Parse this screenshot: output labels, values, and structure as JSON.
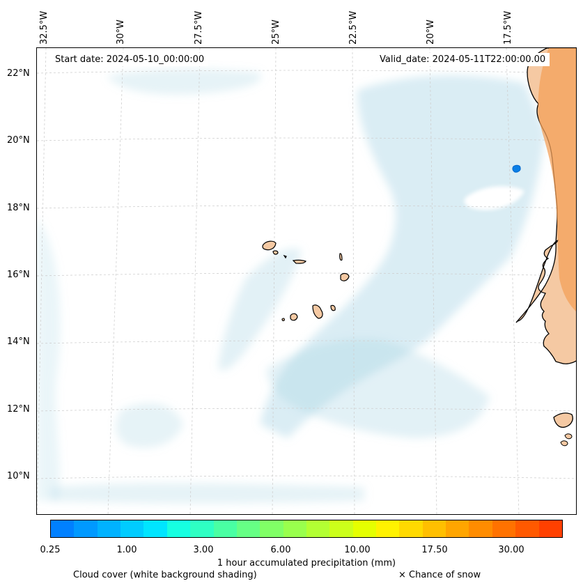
{
  "map": {
    "start_date": "Start date: 2024-05-10_00:00:00",
    "valid_date": "Valid_date: 2024-05-11T22:00:00.00",
    "lon_labels": [
      "32.5°W",
      "30°W",
      "27.5°W",
      "25°W",
      "22.5°W",
      "20°W",
      "17.5°W"
    ],
    "lat_labels": [
      "22°N",
      "20°N",
      "18°N",
      "16°N",
      "14°N",
      "12°N",
      "10°N"
    ]
  },
  "colorbar": {
    "title": "1 hour accumulated precipitation (mm)",
    "tick_labels": [
      "0.25",
      "1.00",
      "3.00",
      "6.00",
      "10.00",
      "17.50",
      "30.00"
    ],
    "colors": [
      "#0080ff",
      "#0099ff",
      "#00b2ff",
      "#00ccff",
      "#00e5ff",
      "#16ffe1",
      "#2effc3",
      "#49ffa3",
      "#66ff85",
      "#80ff66",
      "#99ff4d",
      "#b3ff33",
      "#ccff1a",
      "#e5ff00",
      "#fff200",
      "#ffd900",
      "#ffbf00",
      "#ffa500",
      "#ff8c00",
      "#ff7200",
      "#ff5900",
      "#ff4000"
    ]
  },
  "legend": {
    "cloud_cover": "Cloud cover (white background shading)",
    "snow": "× Chance of snow"
  },
  "colors": {
    "cloud": "#add8e6",
    "land": "#f5c9a3",
    "dry_heat": "#f3a05a",
    "precip_spot": "#0a7fe6"
  }
}
